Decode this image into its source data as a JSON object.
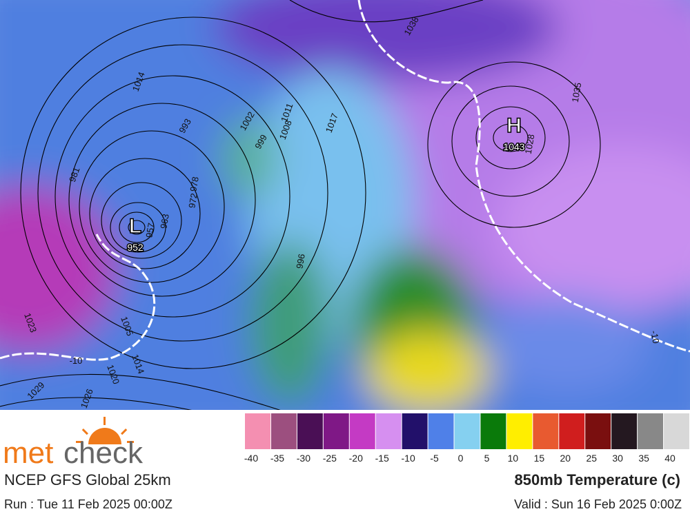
{
  "map": {
    "high_label": "H",
    "high_value": "1043",
    "low_label": "L",
    "low_value": "952",
    "isobar_labels": [
      "1038",
      "1035",
      "1028",
      "993",
      "981",
      "1002",
      "999",
      "1011",
      "1008",
      "1017",
      "978",
      "972",
      "963",
      "957",
      "996",
      "1023",
      "1005",
      "1014",
      "1020",
      "1029",
      "1026",
      "-10",
      "-10",
      "1014"
    ]
  },
  "legend": {
    "colors": [
      "#f48fb1",
      "#9c4f7f",
      "#4a0f55",
      "#7f1886",
      "#c43ac4",
      "#d68ff0",
      "#22106a",
      "#4f80e8",
      "#85d0f0",
      "#0a7a0a",
      "#ffee00",
      "#e85a30",
      "#d01e1e",
      "#7a0f0f",
      "#241820",
      "#888888",
      "#d8d8d8"
    ],
    "ticks": [
      -40,
      -35,
      -30,
      -25,
      -20,
      -15,
      -10,
      -5,
      0,
      5,
      10,
      15,
      20,
      25,
      30,
      35,
      40
    ]
  },
  "branding": {
    "logo_met": "met",
    "logo_check": "check",
    "model": "NCEP GFS Global 25km",
    "run": "Run : Tue 11 Feb 2025 00:00Z"
  },
  "header": {
    "title": "850mb Temperature (c)",
    "valid": "Valid : Sun 16 Feb 2025 0:00Z"
  }
}
